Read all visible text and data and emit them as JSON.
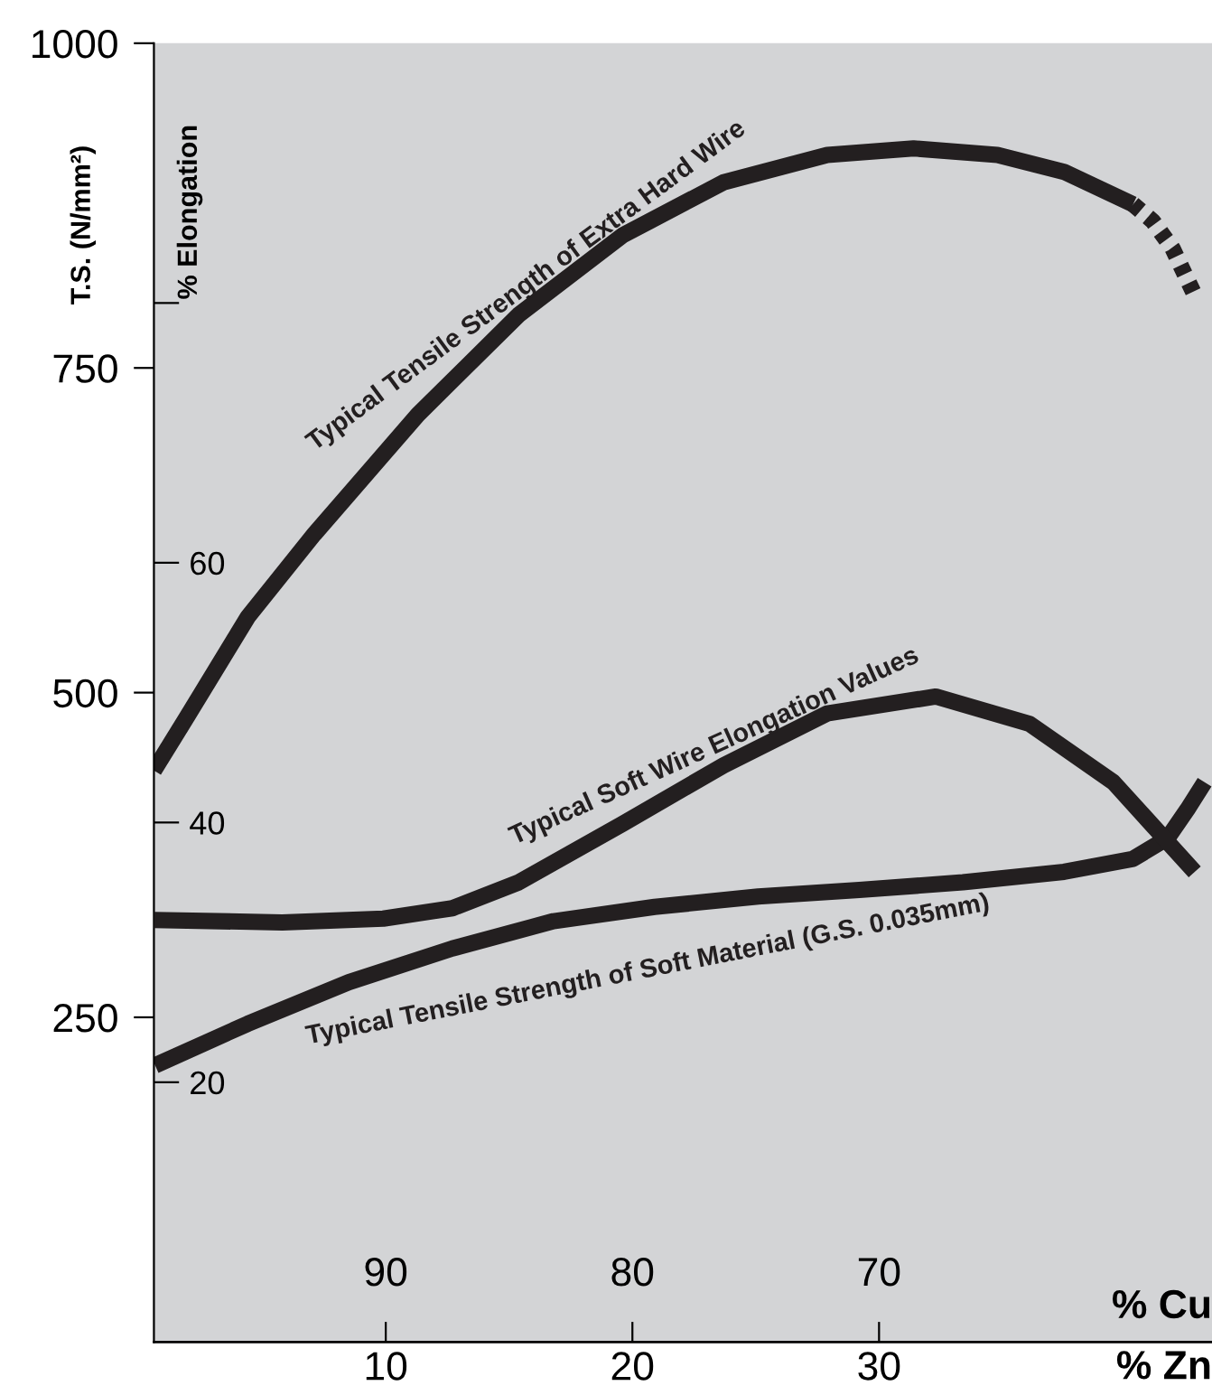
{
  "chart_data": {
    "type": "line",
    "xlabel": "% Zn",
    "x2label": "% Cu",
    "ylabel": "T.S. (N/mm²)",
    "y2label": "% Elongation",
    "xlim": [
      0.6,
      43.5
    ],
    "xticks": [
      10,
      20,
      30
    ],
    "x2lim": [
      99.4,
      56.5
    ],
    "x2ticks": [
      90,
      80,
      70
    ],
    "ylim": [
      0,
      1000
    ],
    "yticks": [
      250,
      500,
      750,
      1000
    ],
    "y2lim": [
      0,
      100
    ],
    "y2ticks": [
      20,
      40,
      60,
      {
        "value": 80,
        "label": null
      }
    ],
    "grid": false,
    "legend": false,
    "series": [
      {
        "name": "Typical Tensile Strength of Extra Hard Wire",
        "color": "#231f20",
        "line_style": "solid",
        "x": [
          0.6,
          1.9,
          4.4,
          7.1,
          11.3,
          15.4,
          19.6,
          23.7,
          27.9,
          31.4,
          34.8,
          37.5,
          40.3
        ],
        "values": [
          440,
          480,
          558,
          622,
          714,
          791,
          852,
          893,
          914,
          919,
          914,
          901,
          876
        ]
      },
      {
        "color": "#231f20",
        "line_style": "dashed",
        "x": [
          40.3,
          41.1,
          41.9,
          42.8
        ],
        "values": [
          876,
          863,
          842,
          806
        ]
      },
      {
        "name": "Typical Soft Wire Elongation Values",
        "color": "#231f20",
        "line_style": "solid",
        "axis": "y2",
        "x": [
          0.6,
          5.8,
          9.9,
          12.7,
          15.4,
          19.6,
          23.7,
          27.9,
          32.3,
          36.1,
          39.5,
          42.8
        ],
        "values": [
          32.5,
          32.3,
          32.6,
          33.4,
          35.4,
          39.9,
          44.4,
          48.4,
          49.7,
          47.6,
          43.1,
          36.2
        ]
      },
      {
        "name": "Typical Tensile Strength of Soft Material (G.S. 0.035mm)",
        "color": "#231f20",
        "line_style": "solid",
        "x": [
          0.65,
          4.4,
          8.5,
          12.7,
          16.8,
          20.9,
          25.1,
          29.2,
          33.4,
          37.5,
          40.3,
          41.7,
          42.5,
          43.2
        ],
        "values": [
          213,
          245,
          277,
          303,
          324,
          335,
          343,
          348,
          354,
          362,
          372,
          388,
          410,
          431
        ]
      }
    ]
  }
}
